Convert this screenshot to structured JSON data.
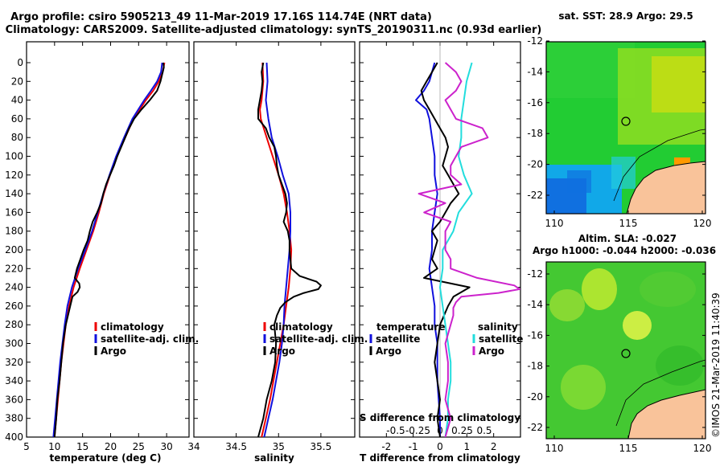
{
  "header": {
    "title_line1": "Argo profile: csiro 5905213_49 11-Mar-2019 17.16S 114.74E (NRT data)",
    "title_line2": "Climatology: CARS2009. Satellite-adjusted climatology: synTS_20190311.nc (0.93d earlier)"
  },
  "colors": {
    "climatology": "#ee0000",
    "satellite": "#1010dd",
    "argo": "#000000",
    "sat_salinity": "#22dddd",
    "sat_temp_diff": "#1010dd",
    "sal_diff": "#cc22cc"
  },
  "depth_ticks": [
    "0",
    "20",
    "40",
    "60",
    "80",
    "100",
    "120",
    "140",
    "160",
    "180",
    "200",
    "220",
    "240",
    "260",
    "280",
    "300",
    "320",
    "340",
    "360",
    "380",
    "400"
  ],
  "chart_data": [
    {
      "type": "line",
      "name": "temperature",
      "xlabel": "temperature (deg C)",
      "ylabel": "",
      "xlim": [
        5,
        34
      ],
      "ylim": [
        400,
        0
      ],
      "xticks": [
        "5",
        "10",
        "15",
        "20",
        "25",
        "30"
      ],
      "legend": [
        "climatology",
        "satellite-adj. clim.",
        "Argo"
      ],
      "series": [
        {
          "name": "climatology",
          "depth": [
            0,
            10,
            20,
            30,
            40,
            60,
            80,
            100,
            120,
            140,
            160,
            180,
            200,
            220,
            240,
            260,
            280,
            300,
            320,
            340,
            360,
            380,
            400
          ],
          "values": [
            29.6,
            29.3,
            28.6,
            27.6,
            26.3,
            24.1,
            22.6,
            21.1,
            19.9,
            18.8,
            17.9,
            16.9,
            15.7,
            14.5,
            13.4,
            12.6,
            12.0,
            11.6,
            11.2,
            10.9,
            10.6,
            10.3,
            10.0
          ]
        },
        {
          "name": "satellite-adj. clim.",
          "depth": [
            0,
            10,
            20,
            30,
            40,
            60,
            80,
            100,
            120,
            140,
            160,
            180,
            200,
            220,
            240,
            260,
            280,
            300,
            320,
            340,
            360,
            380,
            400
          ],
          "values": [
            29.2,
            29.0,
            28.3,
            27.2,
            26.0,
            23.9,
            22.4,
            21.0,
            19.8,
            18.7,
            17.7,
            16.7,
            15.5,
            14.2,
            13.1,
            12.3,
            11.8,
            11.4,
            11.0,
            10.7,
            10.4,
            10.1,
            9.8
          ]
        },
        {
          "name": "Argo",
          "depth": [
            0,
            5,
            10,
            20,
            30,
            40,
            50,
            60,
            70,
            80,
            90,
            100,
            110,
            120,
            130,
            140,
            150,
            160,
            170,
            180,
            190,
            200,
            210,
            220,
            230,
            236,
            240,
            245,
            250,
            260,
            280,
            300,
            320,
            340,
            360,
            380,
            400
          ],
          "values": [
            29.4,
            29.5,
            29.3,
            28.9,
            28.3,
            27.0,
            25.5,
            24.2,
            23.3,
            22.6,
            21.9,
            21.2,
            20.6,
            19.9,
            19.2,
            18.7,
            18.3,
            17.6,
            16.8,
            16.3,
            15.9,
            15.2,
            14.6,
            14.0,
            13.6,
            14.4,
            14.5,
            14.1,
            13.2,
            12.8,
            12.0,
            11.5,
            11.2,
            10.9,
            10.5,
            10.3,
            10.0
          ]
        }
      ]
    },
    {
      "type": "line",
      "name": "salinity",
      "xlabel": "salinity",
      "ylabel": "",
      "xlim": [
        34,
        35.9
      ],
      "ylim": [
        400,
        0
      ],
      "xticks": [
        "34",
        "34.5",
        "35",
        "35.5"
      ],
      "legend": [
        "climatology",
        "satellite-adj. clim.",
        "Argo"
      ],
      "series": [
        {
          "name": "climatology",
          "depth": [
            0,
            20,
            40,
            50,
            60,
            80,
            100,
            120,
            140,
            160,
            180,
            200,
            220,
            240,
            260,
            280,
            300,
            320,
            340,
            360,
            380,
            400
          ],
          "values": [
            34.81,
            34.82,
            34.8,
            34.78,
            34.79,
            34.86,
            34.93,
            35.0,
            35.06,
            35.1,
            35.13,
            35.15,
            35.14,
            35.12,
            35.09,
            35.06,
            35.02,
            34.98,
            34.94,
            34.9,
            34.85,
            34.8
          ]
        },
        {
          "name": "satellite-adj. clim.",
          "depth": [
            0,
            20,
            40,
            60,
            80,
            100,
            120,
            140,
            160,
            180,
            200,
            220,
            240,
            260,
            280,
            300,
            320,
            340,
            360,
            380,
            400
          ],
          "values": [
            34.86,
            34.87,
            34.85,
            34.88,
            34.92,
            34.99,
            35.05,
            35.12,
            35.14,
            35.14,
            35.13,
            35.11,
            35.09,
            35.07,
            35.06,
            35.04,
            35.01,
            34.97,
            34.93,
            34.88,
            34.83
          ]
        },
        {
          "name": "Argo",
          "depth": [
            0,
            10,
            20,
            30,
            40,
            50,
            60,
            70,
            80,
            90,
            100,
            110,
            120,
            130,
            140,
            150,
            160,
            170,
            180,
            190,
            200,
            210,
            220,
            228,
            234,
            238,
            242,
            246,
            250,
            256,
            262,
            270,
            280,
            300,
            320,
            340,
            360,
            380,
            400
          ],
          "values": [
            34.82,
            34.8,
            34.81,
            34.8,
            34.78,
            34.76,
            34.76,
            34.85,
            34.89,
            34.95,
            34.97,
            34.98,
            35.0,
            35.04,
            35.08,
            35.1,
            35.09,
            35.06,
            35.11,
            35.13,
            35.13,
            35.14,
            35.15,
            35.25,
            35.45,
            35.5,
            35.47,
            35.3,
            35.18,
            35.08,
            35.02,
            34.98,
            34.95,
            34.97,
            34.96,
            34.92,
            34.86,
            34.82,
            34.76
          ]
        }
      ]
    },
    {
      "type": "line",
      "name": "differences",
      "xlabel": "T difference from climatology",
      "top_label": "S difference from climatology",
      "xlim": [
        -3,
        3
      ],
      "ylim": [
        400,
        0
      ],
      "xticks": [
        "-2",
        "-1",
        "0",
        "1",
        "2"
      ],
      "top_ticks": [
        "-0.5",
        "-0.25",
        "0",
        "0.25",
        "0.5"
      ],
      "legend_temperature_title": "temperature",
      "legend_salinity_title": "salinity",
      "legend": [
        "satellite",
        "Argo",
        "satellite",
        "Argo"
      ],
      "series": [
        {
          "name": "satellite (temperature)",
          "depth": [
            0,
            10,
            20,
            30,
            40,
            50,
            60,
            80,
            100,
            120,
            140,
            160,
            180,
            200,
            220,
            240,
            260,
            280,
            300,
            320,
            340,
            360,
            380,
            400
          ],
          "values": [
            -0.2,
            -0.3,
            -0.4,
            -0.6,
            -0.9,
            -0.5,
            -0.4,
            -0.3,
            -0.2,
            -0.2,
            -0.1,
            -0.2,
            -0.3,
            -0.3,
            -0.4,
            -0.3,
            -0.2,
            -0.2,
            -0.1,
            -0.1,
            -0.1,
            -0.05,
            0,
            0
          ]
        },
        {
          "name": "Argo (temperature)",
          "depth": [
            0,
            10,
            20,
            30,
            40,
            50,
            60,
            70,
            80,
            90,
            100,
            110,
            120,
            130,
            140,
            150,
            160,
            170,
            180,
            190,
            200,
            210,
            220,
            230,
            240,
            250,
            260,
            280,
            300,
            320,
            340,
            360,
            380,
            400
          ],
          "values": [
            -0.1,
            -0.3,
            -0.5,
            -0.7,
            -0.6,
            -0.4,
            -0.2,
            0.0,
            0.2,
            0.3,
            0.2,
            0.1,
            0.3,
            0.5,
            0.7,
            0.4,
            0.2,
            0.0,
            -0.3,
            -0.1,
            -0.2,
            -0.3,
            -0.1,
            -0.6,
            1.1,
            0.5,
            0.3,
            0.0,
            -0.1,
            -0.2,
            -0.1,
            0.0,
            -0.1,
            0.0
          ]
        },
        {
          "name": "satellite (salinity)",
          "depth": [
            0,
            20,
            40,
            60,
            80,
            100,
            120,
            140,
            160,
            180,
            200,
            220,
            240,
            260,
            280,
            300,
            320,
            340,
            360,
            380,
            400
          ],
          "values": [
            0.6,
            0.5,
            0.45,
            0.4,
            0.4,
            0.35,
            0.45,
            0.6,
            0.35,
            0.25,
            0.05,
            0.05,
            0.0,
            0.05,
            0.1,
            0.15,
            0.2,
            0.2,
            0.15,
            0.15,
            0.1
          ]
        },
        {
          "name": "Argo (salinity)",
          "depth": [
            0,
            10,
            20,
            30,
            40,
            50,
            60,
            70,
            80,
            90,
            100,
            110,
            120,
            130,
            140,
            150,
            160,
            170,
            180,
            190,
            200,
            210,
            220,
            230,
            238,
            242,
            246,
            250,
            256,
            262,
            270,
            280,
            300,
            320,
            340,
            360,
            380,
            400
          ],
          "values": [
            0.1,
            0.3,
            0.4,
            0.3,
            0.1,
            0.2,
            0.3,
            0.8,
            0.9,
            0.4,
            0.3,
            0.2,
            0.2,
            0.4,
            -0.4,
            0.1,
            -0.3,
            0.2,
            0.1,
            0.1,
            0.1,
            0.2,
            0.2,
            0.7,
            1.4,
            1.5,
            1.1,
            0.4,
            0.3,
            0.25,
            0.25,
            0.2,
            0.1,
            0.15,
            0.15,
            0.1,
            0.2,
            0.1
          ]
        }
      ]
    }
  ],
  "sst_map": {
    "title": "sat. SST: 28.9 Argo: 29.5",
    "yticks": [
      "-12",
      "-14",
      "-16",
      "-18",
      "-20",
      "-22"
    ],
    "xticks": [
      "110",
      "115",
      "120"
    ]
  },
  "sla_map": {
    "title1": "Altim. SLA: -0.027",
    "title2": "Argo h1000: -0.044 h2000: -0.036",
    "yticks": [
      "-12",
      "-14",
      "-16",
      "-18",
      "-20",
      "-22"
    ],
    "xticks": [
      "110",
      "115",
      "120"
    ]
  },
  "credit": "©IMOS 21-Mar-2019 11:40:39"
}
